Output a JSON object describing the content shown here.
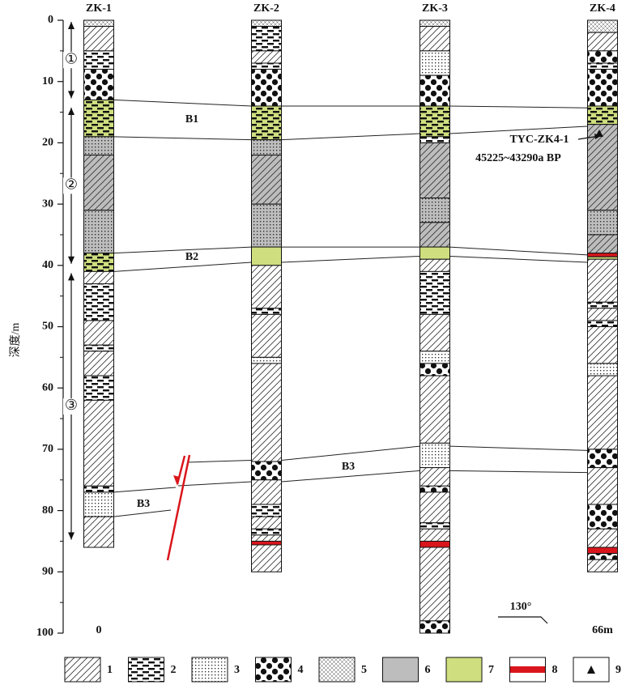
{
  "depth_axis": {
    "label": "深度/m",
    "lim": [
      0,
      100
    ],
    "ticks": [
      0,
      10,
      20,
      30,
      40,
      50,
      60,
      70,
      80,
      90,
      100
    ]
  },
  "boreholes": [
    {
      "name": "ZK-1",
      "layers": [
        {
          "top": 0,
          "bottom": 1,
          "lith": [
            "5"
          ]
        },
        {
          "top": 1,
          "bottom": 5,
          "lith": [
            "1"
          ]
        },
        {
          "top": 5,
          "bottom": 8,
          "lith": [
            "2"
          ]
        },
        {
          "top": 8,
          "bottom": 13,
          "lith": [
            "4"
          ]
        },
        {
          "top": 13,
          "bottom": 19,
          "lith": [
            "7",
            "2"
          ]
        },
        {
          "top": 19,
          "bottom": 22,
          "lith": [
            "6",
            "3"
          ]
        },
        {
          "top": 22,
          "bottom": 31,
          "lith": [
            "6",
            "1"
          ]
        },
        {
          "top": 31,
          "bottom": 38,
          "lith": [
            "6",
            "3"
          ]
        },
        {
          "top": 38,
          "bottom": 41,
          "lith": [
            "7",
            "2"
          ]
        },
        {
          "top": 41,
          "bottom": 43,
          "lith": [
            "1"
          ]
        },
        {
          "top": 43,
          "bottom": 49,
          "lith": [
            "2"
          ]
        },
        {
          "top": 49,
          "bottom": 53,
          "lith": [
            "1"
          ]
        },
        {
          "top": 53,
          "bottom": 54,
          "lith": [
            "2"
          ]
        },
        {
          "top": 54,
          "bottom": 58,
          "lith": [
            "1"
          ]
        },
        {
          "top": 58,
          "bottom": 62,
          "lith": [
            "2"
          ]
        },
        {
          "top": 62,
          "bottom": 76,
          "lith": [
            "1"
          ]
        },
        {
          "top": 76,
          "bottom": 77,
          "lith": [
            "2"
          ]
        },
        {
          "top": 77,
          "bottom": 81,
          "lith": [
            "3"
          ]
        },
        {
          "top": 81,
          "bottom": 86,
          "lith": [
            "1"
          ]
        }
      ]
    },
    {
      "name": "ZK-2",
      "layers": [
        {
          "top": 0,
          "bottom": 1,
          "lith": [
            "5"
          ]
        },
        {
          "top": 1,
          "bottom": 5,
          "lith": [
            "2"
          ]
        },
        {
          "top": 5,
          "bottom": 7,
          "lith": [
            "1"
          ]
        },
        {
          "top": 7,
          "bottom": 8,
          "lith": [
            "2"
          ]
        },
        {
          "top": 8,
          "bottom": 14,
          "lith": [
            "4"
          ]
        },
        {
          "top": 14,
          "bottom": 19.5,
          "lith": [
            "7",
            "2"
          ]
        },
        {
          "top": 19.5,
          "bottom": 22,
          "lith": [
            "6",
            "3"
          ]
        },
        {
          "top": 22,
          "bottom": 30,
          "lith": [
            "6",
            "1"
          ]
        },
        {
          "top": 30,
          "bottom": 37,
          "lith": [
            "6",
            "3"
          ]
        },
        {
          "top": 37,
          "bottom": 40,
          "lith": [
            "7"
          ]
        },
        {
          "top": 40,
          "bottom": 47,
          "lith": [
            "1"
          ]
        },
        {
          "top": 47,
          "bottom": 48,
          "lith": [
            "2"
          ]
        },
        {
          "top": 48,
          "bottom": 55,
          "lith": [
            "1"
          ]
        },
        {
          "top": 55,
          "bottom": 56,
          "lith": [
            "3"
          ]
        },
        {
          "top": 56,
          "bottom": 72,
          "lith": [
            "1"
          ]
        },
        {
          "top": 72,
          "bottom": 75,
          "lith": [
            "4"
          ]
        },
        {
          "top": 75,
          "bottom": 79,
          "lith": [
            "1"
          ]
        },
        {
          "top": 79,
          "bottom": 81,
          "lith": [
            "2"
          ]
        },
        {
          "top": 81,
          "bottom": 83,
          "lith": [
            "1"
          ]
        },
        {
          "top": 83,
          "bottom": 84,
          "lith": [
            "2"
          ]
        },
        {
          "top": 84,
          "bottom": 85,
          "lith": [
            "1"
          ]
        },
        {
          "top": 85,
          "bottom": 85.6,
          "lith": [
            "8"
          ]
        },
        {
          "top": 85.6,
          "bottom": 90,
          "lith": [
            "1"
          ]
        }
      ]
    },
    {
      "name": "ZK-3",
      "layers": [
        {
          "top": 0,
          "bottom": 1,
          "lith": [
            "5"
          ]
        },
        {
          "top": 1,
          "bottom": 5,
          "lith": [
            "1"
          ]
        },
        {
          "top": 5,
          "bottom": 9,
          "lith": [
            "3"
          ]
        },
        {
          "top": 9,
          "bottom": 14,
          "lith": [
            "4"
          ]
        },
        {
          "top": 14,
          "bottom": 19,
          "lith": [
            "7",
            "2"
          ]
        },
        {
          "top": 19,
          "bottom": 20,
          "lith": [
            "2"
          ]
        },
        {
          "top": 20,
          "bottom": 29,
          "lith": [
            "6",
            "1"
          ]
        },
        {
          "top": 29,
          "bottom": 33,
          "lith": [
            "6",
            "3"
          ]
        },
        {
          "top": 33,
          "bottom": 37,
          "lith": [
            "6",
            "1"
          ]
        },
        {
          "top": 37,
          "bottom": 39,
          "lith": [
            "7"
          ]
        },
        {
          "top": 39,
          "bottom": 41,
          "lith": [
            "1"
          ]
        },
        {
          "top": 41,
          "bottom": 48,
          "lith": [
            "2"
          ]
        },
        {
          "top": 48,
          "bottom": 54,
          "lith": [
            "1"
          ]
        },
        {
          "top": 54,
          "bottom": 56,
          "lith": [
            "3"
          ]
        },
        {
          "top": 56,
          "bottom": 58,
          "lith": [
            "4"
          ]
        },
        {
          "top": 58,
          "bottom": 69,
          "lith": [
            "1"
          ]
        },
        {
          "top": 69,
          "bottom": 73,
          "lith": [
            "3"
          ]
        },
        {
          "top": 73,
          "bottom": 76,
          "lith": [
            "1"
          ]
        },
        {
          "top": 76,
          "bottom": 77,
          "lith": [
            "4"
          ]
        },
        {
          "top": 77,
          "bottom": 82,
          "lith": [
            "1"
          ]
        },
        {
          "top": 82,
          "bottom": 83,
          "lith": [
            "2"
          ]
        },
        {
          "top": 83,
          "bottom": 85,
          "lith": [
            "1"
          ]
        },
        {
          "top": 85,
          "bottom": 86,
          "lith": [
            "8"
          ]
        },
        {
          "top": 86,
          "bottom": 98,
          "lith": [
            "1"
          ]
        },
        {
          "top": 98,
          "bottom": 100,
          "lith": [
            "4"
          ]
        }
      ]
    },
    {
      "name": "ZK-4",
      "layers": [
        {
          "top": 0,
          "bottom": 2,
          "lith": [
            "5"
          ]
        },
        {
          "top": 2,
          "bottom": 5,
          "lith": [
            "1"
          ]
        },
        {
          "top": 5,
          "bottom": 7,
          "lith": [
            "4"
          ]
        },
        {
          "top": 7,
          "bottom": 8,
          "lith": [
            "2"
          ]
        },
        {
          "top": 8,
          "bottom": 14,
          "lith": [
            "4"
          ]
        },
        {
          "top": 14,
          "bottom": 17,
          "lith": [
            "7",
            "2"
          ]
        },
        {
          "top": 17,
          "bottom": 31,
          "lith": [
            "6",
            "1"
          ]
        },
        {
          "top": 31,
          "bottom": 35,
          "lith": [
            "6",
            "3"
          ]
        },
        {
          "top": 35,
          "bottom": 38,
          "lith": [
            "6",
            "1"
          ]
        },
        {
          "top": 38,
          "bottom": 38.6,
          "lith": [
            "8"
          ]
        },
        {
          "top": 38.6,
          "bottom": 39,
          "lith": [
            "7"
          ]
        },
        {
          "top": 39,
          "bottom": 46,
          "lith": [
            "1"
          ]
        },
        {
          "top": 46,
          "bottom": 47,
          "lith": [
            "2"
          ]
        },
        {
          "top": 47,
          "bottom": 49,
          "lith": [
            "1"
          ]
        },
        {
          "top": 49,
          "bottom": 50,
          "lith": [
            "2"
          ]
        },
        {
          "top": 50,
          "bottom": 56,
          "lith": [
            "1"
          ]
        },
        {
          "top": 56,
          "bottom": 58,
          "lith": [
            "3"
          ]
        },
        {
          "top": 58,
          "bottom": 70,
          "lith": [
            "1"
          ]
        },
        {
          "top": 70,
          "bottom": 73,
          "lith": [
            "4"
          ]
        },
        {
          "top": 73,
          "bottom": 79,
          "lith": [
            "1"
          ]
        },
        {
          "top": 79,
          "bottom": 83,
          "lith": [
            "4"
          ]
        },
        {
          "top": 83,
          "bottom": 86,
          "lith": [
            "1"
          ]
        },
        {
          "top": 86,
          "bottom": 87,
          "lith": [
            "8"
          ]
        },
        {
          "top": 87,
          "bottom": 88,
          "lith": [
            "4"
          ]
        },
        {
          "top": 88,
          "bottom": 90,
          "lith": [
            "1"
          ]
        }
      ]
    }
  ],
  "units": [
    {
      "label": "①",
      "top": 0,
      "bottom": 13
    },
    {
      "label": "②",
      "top": 14,
      "bottom": 40
    },
    {
      "label": "③",
      "top": 41,
      "bottom": 85
    }
  ],
  "beds": [
    {
      "label": "B1",
      "top": [
        13,
        14,
        14,
        14.3
      ],
      "bottom": [
        19,
        19.5,
        18.5,
        17.3
      ]
    },
    {
      "label": "B2",
      "top": [
        38,
        37,
        37,
        38.3
      ],
      "bottom": [
        41,
        39.5,
        38.5,
        39.5
      ]
    },
    {
      "label": "B3",
      "top": [
        null,
        71.8,
        69.5,
        70.2
      ],
      "bottom": [
        null,
        75.3,
        73.5,
        73.8
      ]
    },
    {
      "label": "B3",
      "top": [
        77,
        null,
        null,
        null
      ],
      "bottom": [
        81,
        null,
        null,
        null
      ]
    }
  ],
  "sample": {
    "name": "TYC-ZK4-1",
    "age": "45225~43290a BP",
    "depth": 18.5
  },
  "distance": {
    "start": "0",
    "end": "66m"
  },
  "direction": "130°",
  "legend": [
    "1",
    "2",
    "3",
    "4",
    "5",
    "6",
    "7",
    "8",
    "9"
  ]
}
